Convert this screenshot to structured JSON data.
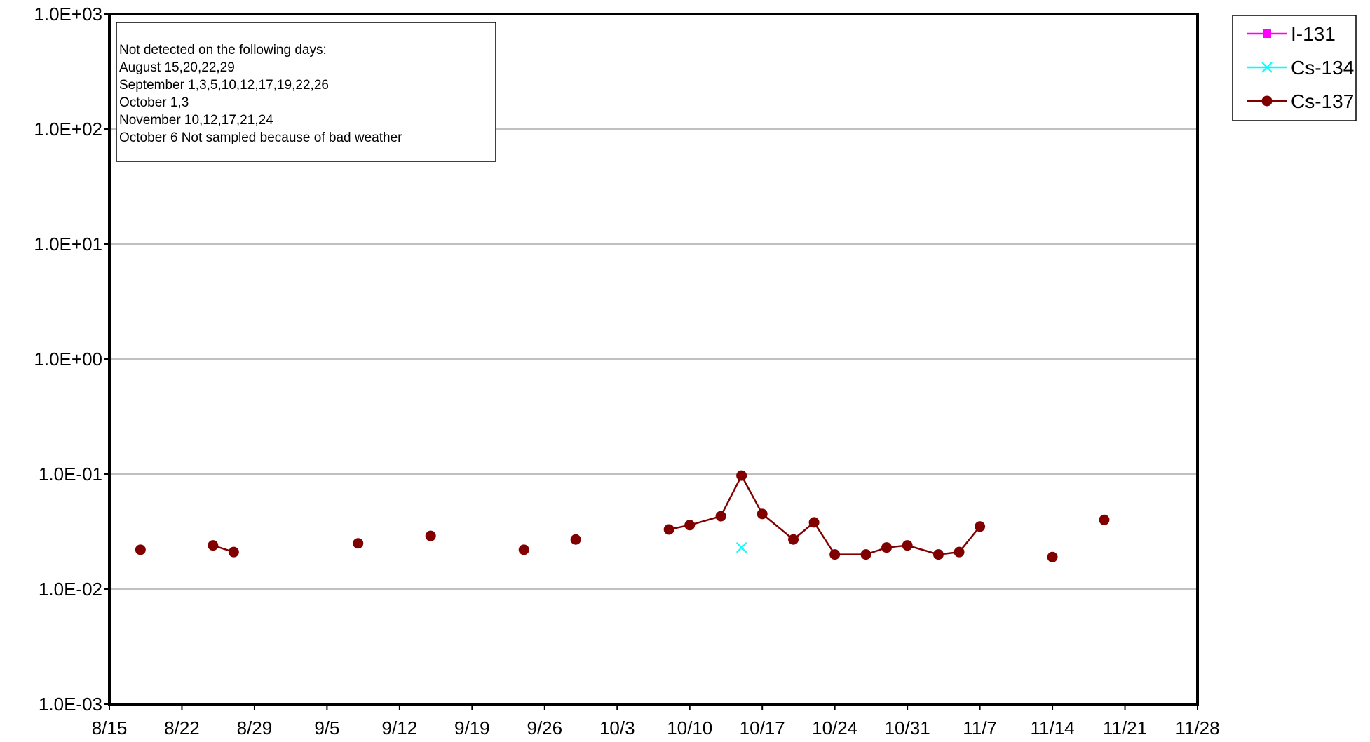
{
  "chart_data": {
    "type": "line",
    "title": "",
    "xlabel": "",
    "ylabel": "",
    "y_scale": "log",
    "ylim": [
      0.001,
      1000
    ],
    "y_tick_labels": [
      "1.0E-03",
      "1.0E-02",
      "1.0E-01",
      "1.0E+00",
      "1.0E+01",
      "1.0E+02",
      "1.0E+03"
    ],
    "x_range": [
      "8/15",
      "11/28"
    ],
    "x_tick_labels": [
      "8/15",
      "8/22",
      "8/29",
      "9/5",
      "9/12",
      "9/19",
      "9/26",
      "10/3",
      "10/10",
      "10/17",
      "10/24",
      "10/31",
      "11/7",
      "11/14",
      "11/21",
      "11/28"
    ],
    "grid": "horizontal",
    "legend_position": "top-right, outside plot",
    "annotation": {
      "position": "top-left",
      "lines": [
        "Not detected on the following days:",
        "August 15,20,22,29",
        "September 1,3,5,10,12,17,19,22,26",
        "October 1,3",
        "November 10,12,17,21,24",
        "October 6 Not sampled because of bad weather"
      ]
    },
    "series": [
      {
        "name": "I-131",
        "color": "#FF00FF",
        "marker": "square",
        "points": []
      },
      {
        "name": "Cs-134",
        "color": "#00FFFF",
        "marker": "x",
        "points": [
          {
            "date": "10/15",
            "value": 0.023
          }
        ]
      },
      {
        "name": "Cs-137",
        "color": "#800000",
        "marker": "circle",
        "points": [
          {
            "date": "8/18",
            "value": 0.022,
            "break_before": true
          },
          {
            "date": "8/25",
            "value": 0.024,
            "break_before": true
          },
          {
            "date": "8/27",
            "value": 0.021
          },
          {
            "date": "9/8",
            "value": 0.025,
            "break_before": true
          },
          {
            "date": "9/15",
            "value": 0.029,
            "break_before": true
          },
          {
            "date": "9/24",
            "value": 0.022,
            "break_before": true
          },
          {
            "date": "9/29",
            "value": 0.027,
            "break_before": true
          },
          {
            "date": "10/8",
            "value": 0.033,
            "break_before": true
          },
          {
            "date": "10/10",
            "value": 0.036
          },
          {
            "date": "10/13",
            "value": 0.043
          },
          {
            "date": "10/15",
            "value": 0.097
          },
          {
            "date": "10/17",
            "value": 0.045
          },
          {
            "date": "10/20",
            "value": 0.027
          },
          {
            "date": "10/22",
            "value": 0.038
          },
          {
            "date": "10/24",
            "value": 0.02
          },
          {
            "date": "10/27",
            "value": 0.02
          },
          {
            "date": "10/29",
            "value": 0.023
          },
          {
            "date": "10/31",
            "value": 0.024
          },
          {
            "date": "11/3",
            "value": 0.02
          },
          {
            "date": "11/5",
            "value": 0.021
          },
          {
            "date": "11/7",
            "value": 0.035
          },
          {
            "date": "11/14",
            "value": 0.019,
            "break_before": true
          },
          {
            "date": "11/19",
            "value": 0.04,
            "break_before": true
          }
        ]
      }
    ]
  }
}
